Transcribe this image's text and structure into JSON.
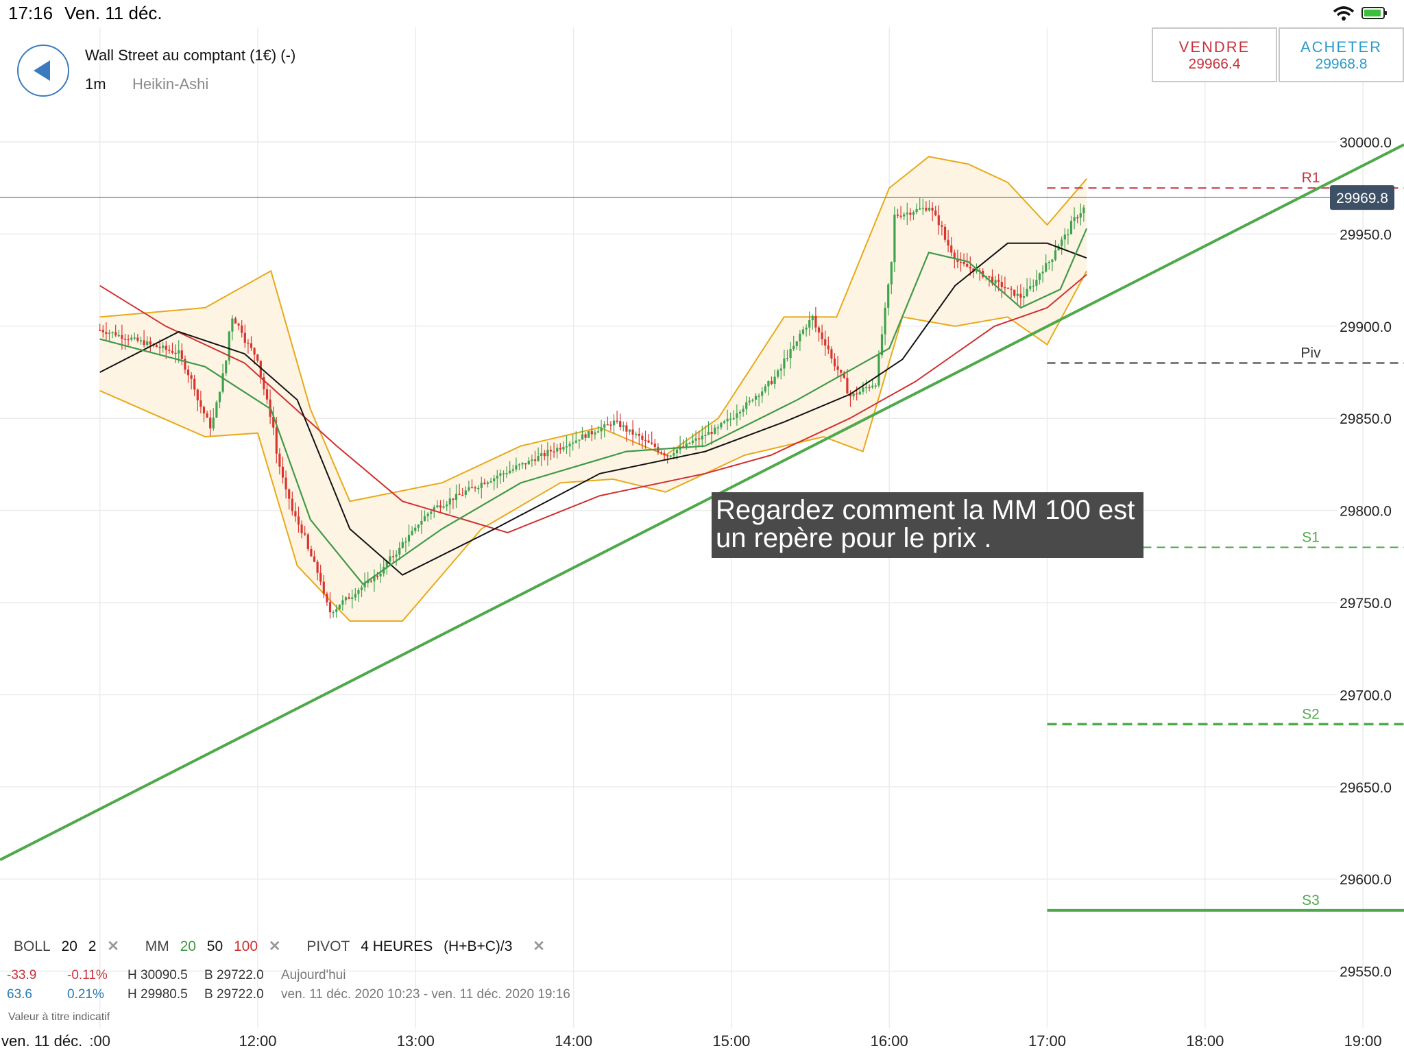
{
  "status_bar": {
    "time": "17:16",
    "date": "Ven. 11 déc.",
    "wifi_icon": "wifi-icon",
    "battery_icon": "battery-charging-icon"
  },
  "header": {
    "instrument": "Wall Street au comptant (1€) (-)",
    "timeframe": "1m",
    "chart_style": "Heikin-Ashi",
    "back_icon": "chevron-left-icon"
  },
  "trade": {
    "sell_label": "VENDRE",
    "sell_price": "29966.4",
    "buy_label": "ACHETER",
    "buy_price": "29968.8",
    "sell_color": "#c8323c",
    "buy_color": "#2a9ac9"
  },
  "annotation": "Regardez comment la MM 100 est un repère pour le prix .",
  "indicators": {
    "boll": {
      "label": "BOLL",
      "period": "20",
      "dev": "2"
    },
    "mm": {
      "label": "MM",
      "p1": "20",
      "p2": "50",
      "p3": "100"
    },
    "pivot": {
      "label": "PIVOT",
      "period": "4 HEURES",
      "formula": "(H+B+C)/3"
    }
  },
  "stats": [
    {
      "change": "-33.9",
      "pct": "-0.11%",
      "high": "H 30090.5",
      "low": "B 29722.0",
      "period": "Aujourd'hui"
    },
    {
      "change": "63.6",
      "pct": "0.21%",
      "high": "H 29980.5",
      "low": "B 29722.0",
      "period": "ven. 11 déc. 2020 10:23 - ven. 11 déc. 2020 19:16"
    }
  ],
  "disclaimer": "Valeur à titre indicatif",
  "x_axis_date": "ven. 11 déc.",
  "colors": {
    "up": "#3fa34d",
    "down": "#d9352f",
    "boll": "#e8a918",
    "mm20": "#3f9a47",
    "mm50": "#111111",
    "mm100": "#d0302f",
    "trend": "#4ea94a"
  },
  "chart_data": {
    "type": "candlestick",
    "ylim": [
      29530,
      30030
    ],
    "x_ticks": [
      ":00",
      "12:00",
      "13:00",
      "14:00",
      "15:00",
      "16:00",
      "17:00",
      "18:00",
      "19:00"
    ],
    "y_ticks": [
      "30000.0",
      "29950.0",
      "29900.0",
      "29850.0",
      "29800.0",
      "29750.0",
      "29700.0",
      "29650.0",
      "29600.0",
      "29550.0"
    ],
    "current_price": "29969.8",
    "pivot_levels": [
      {
        "name": "R1",
        "value": 29975,
        "style": "dashed",
        "color": "#c8323c"
      },
      {
        "name": "Piv",
        "value": 29880,
        "style": "dashed",
        "color": "#333333"
      },
      {
        "name": "S1",
        "value": 29780,
        "style": "dashed",
        "color": "#4ea94a"
      },
      {
        "name": "S2",
        "value": 29684,
        "style": "dashed-bold",
        "color": "#4ea94a"
      },
      {
        "name": "S3",
        "value": 29583,
        "style": "solid",
        "color": "#4ea94a"
      }
    ],
    "trendline": [
      {
        "t": "11:00",
        "price": 29638
      },
      {
        "t": "19:08",
        "price": 29993
      }
    ],
    "price_path": [
      [
        "11:00",
        29898
      ],
      [
        "11:30",
        29885
      ],
      [
        "11:42",
        29842
      ],
      [
        "11:50",
        29905
      ],
      [
        "12:00",
        29880
      ],
      [
        "12:10",
        29810
      ],
      [
        "12:20",
        29775
      ],
      [
        "12:27",
        29745
      ],
      [
        "12:45",
        29765
      ],
      [
        "13:05",
        29800
      ],
      [
        "13:25",
        29815
      ],
      [
        "13:55",
        29835
      ],
      [
        "14:15",
        29848
      ],
      [
        "14:35",
        29830
      ],
      [
        "14:55",
        29845
      ],
      [
        "15:15",
        29870
      ],
      [
        "15:30",
        29905
      ],
      [
        "15:45",
        29862
      ],
      [
        "15:55",
        29870
      ],
      [
        "16:02",
        29960
      ],
      [
        "16:15",
        29965
      ],
      [
        "16:25",
        29935
      ],
      [
        "16:35",
        29928
      ],
      [
        "16:50",
        29915
      ],
      [
        "17:00",
        29935
      ],
      [
        "17:10",
        29958
      ],
      [
        "17:15",
        29968
      ]
    ],
    "mm20_path": [
      [
        "11:00",
        29893
      ],
      [
        "11:40",
        29878
      ],
      [
        "12:05",
        29855
      ],
      [
        "12:20",
        29795
      ],
      [
        "12:40",
        29760
      ],
      [
        "13:10",
        29790
      ],
      [
        "13:40",
        29815
      ],
      [
        "14:20",
        29832
      ],
      [
        "14:50",
        29835
      ],
      [
        "15:25",
        29860
      ],
      [
        "15:45",
        29876
      ],
      [
        "16:00",
        29888
      ],
      [
        "16:15",
        29940
      ],
      [
        "16:30",
        29935
      ],
      [
        "16:50",
        29910
      ],
      [
        "17:05",
        29920
      ],
      [
        "17:15",
        29953
      ]
    ],
    "mm50_path": [
      [
        "11:00",
        29875
      ],
      [
        "11:30",
        29897
      ],
      [
        "11:55",
        29885
      ],
      [
        "12:15",
        29860
      ],
      [
        "12:35",
        29790
      ],
      [
        "12:55",
        29765
      ],
      [
        "13:30",
        29790
      ],
      [
        "14:10",
        29820
      ],
      [
        "14:50",
        29832
      ],
      [
        "15:20",
        29848
      ],
      [
        "15:45",
        29863
      ],
      [
        "16:05",
        29882
      ],
      [
        "16:25",
        29922
      ],
      [
        "16:45",
        29945
      ],
      [
        "17:00",
        29945
      ],
      [
        "17:15",
        29937
      ]
    ],
    "mm100_path": [
      [
        "11:00",
        29922
      ],
      [
        "11:25",
        29900
      ],
      [
        "11:55",
        29880
      ],
      [
        "12:30",
        29835
      ],
      [
        "12:55",
        29805
      ],
      [
        "13:35",
        29788
      ],
      [
        "14:10",
        29808
      ],
      [
        "14:50",
        29820
      ],
      [
        "15:15",
        29830
      ],
      [
        "15:45",
        29850
      ],
      [
        "16:10",
        29870
      ],
      [
        "16:40",
        29900
      ],
      [
        "17:00",
        29910
      ],
      [
        "17:15",
        29928
      ]
    ],
    "boll_upper": [
      [
        "11:00",
        29905
      ],
      [
        "11:40",
        29910
      ],
      [
        "12:05",
        29930
      ],
      [
        "12:20",
        29855
      ],
      [
        "12:35",
        29805
      ],
      [
        "13:10",
        29815
      ],
      [
        "13:40",
        29835
      ],
      [
        "14:10",
        29845
      ],
      [
        "14:35",
        29830
      ],
      [
        "14:55",
        29850
      ],
      [
        "15:20",
        29905
      ],
      [
        "15:40",
        29905
      ],
      [
        "16:00",
        29975
      ],
      [
        "16:15",
        29992
      ],
      [
        "16:30",
        29988
      ],
      [
        "16:45",
        29978
      ],
      [
        "17:00",
        29955
      ],
      [
        "17:15",
        29980
      ]
    ],
    "boll_lower": [
      [
        "11:00",
        29865
      ],
      [
        "11:40",
        29840
      ],
      [
        "12:00",
        29842
      ],
      [
        "12:15",
        29770
      ],
      [
        "12:35",
        29740
      ],
      [
        "12:55",
        29740
      ],
      [
        "13:25",
        29790
      ],
      [
        "13:55",
        29815
      ],
      [
        "14:15",
        29817
      ],
      [
        "14:35",
        29810
      ],
      [
        "15:05",
        29830
      ],
      [
        "15:35",
        29840
      ],
      [
        "15:50",
        29832
      ],
      [
        "16:05",
        29905
      ],
      [
        "16:25",
        29900
      ],
      [
        "16:45",
        29905
      ],
      [
        "17:00",
        29890
      ],
      [
        "17:15",
        29930
      ]
    ]
  }
}
